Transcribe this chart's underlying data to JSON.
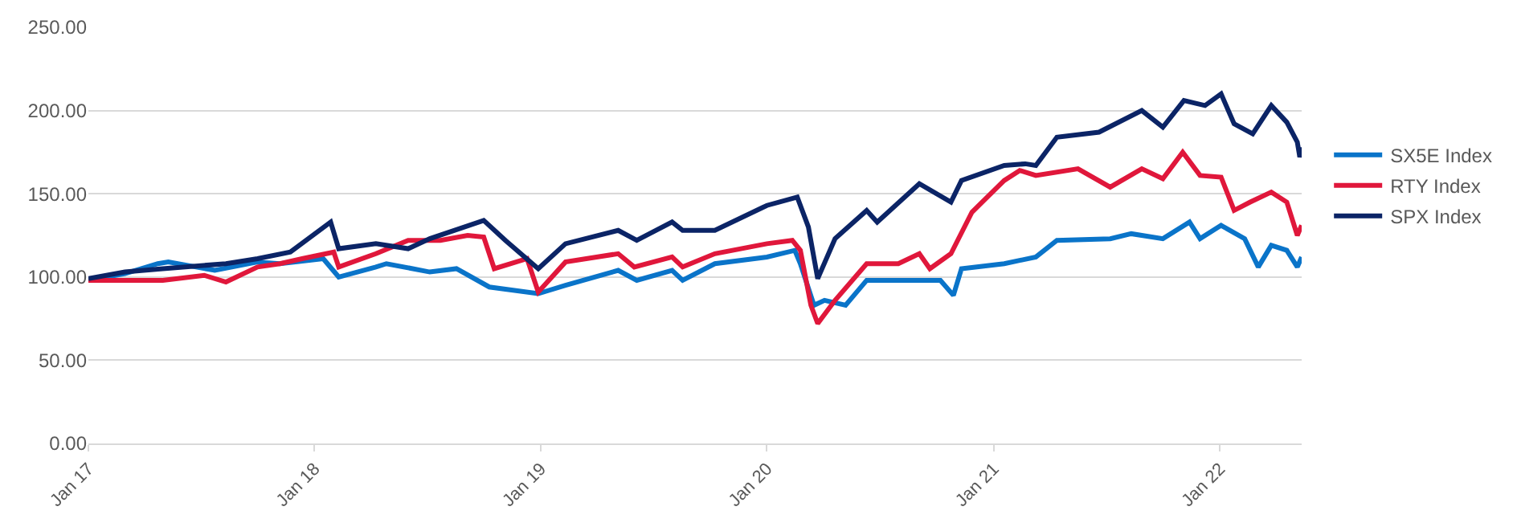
{
  "chart_data": {
    "type": "line",
    "grid": "y",
    "legend": "right",
    "line_style": "solid",
    "marker": "none",
    "xlim": [
      "2017-01-01",
      "2022-05-13"
    ],
    "xticks": [
      {
        "value": "2017-01-01",
        "label": "Jan 17"
      },
      {
        "value": "2018-01-01",
        "label": "Jan 18"
      },
      {
        "value": "2019-01-01",
        "label": "Jan 19"
      },
      {
        "value": "2020-01-01",
        "label": "Jan 20"
      },
      {
        "value": "2021-01-01",
        "label": "Jan 21"
      },
      {
        "value": "2022-01-01",
        "label": "Jan 22"
      }
    ],
    "ylim": [
      0,
      250
    ],
    "yticks": [
      {
        "value": 0,
        "label": "0.00"
      },
      {
        "value": 50,
        "label": "50.00"
      },
      {
        "value": 100,
        "label": "100.00"
      },
      {
        "value": 150,
        "label": "150.00"
      },
      {
        "value": 200,
        "label": "200.00"
      },
      {
        "value": 250,
        "label": "250.00"
      }
    ],
    "series": [
      {
        "name": "SX5E Index",
        "color": "#0a74c9",
        "x": [
          "2017-01-01",
          "2017-03-01",
          "2017-04-23",
          "2017-05-10",
          "2017-07-24",
          "2017-10-01",
          "2017-11-06",
          "2018-01-15",
          "2018-02-09",
          "2018-04-10",
          "2018-04-27",
          "2018-07-06",
          "2018-08-18",
          "2018-10-10",
          "2018-12-28",
          "2019-02-10",
          "2019-05-06",
          "2019-06-05",
          "2019-08-01",
          "2019-08-18",
          "2019-10-09",
          "2020-01-01",
          "2020-02-15",
          "2020-02-24",
          "2020-03-17",
          "2020-04-03",
          "2020-05-07",
          "2020-06-10",
          "2020-07-31",
          "2020-10-07",
          "2020-10-28",
          "2020-11-10",
          "2021-01-18",
          "2021-03-10",
          "2021-04-13",
          "2021-07-08",
          "2021-08-11",
          "2021-10-01",
          "2021-11-13",
          "2021-11-30",
          "2022-01-03",
          "2022-02-10",
          "2022-03-04",
          "2022-03-25",
          "2022-04-19",
          "2022-05-06",
          "2022-05-13"
        ],
        "values": [
          98,
          102,
          108,
          109,
          104,
          109,
          108,
          111,
          100,
          106,
          108,
          103,
          105,
          94,
          90,
          95,
          104,
          98,
          104,
          98,
          108,
          112,
          116,
          108,
          83,
          86,
          83,
          98,
          98,
          98,
          89,
          105,
          108,
          112,
          122,
          123,
          126,
          123,
          133,
          123,
          131,
          123,
          106,
          119,
          116,
          106,
          112
        ]
      },
      {
        "name": "RTY Index",
        "color": "#e0173b",
        "x": [
          "2017-01-01",
          "2017-03-01",
          "2017-05-01",
          "2017-07-07",
          "2017-08-11",
          "2017-10-01",
          "2017-11-06",
          "2017-12-12",
          "2018-02-01",
          "2018-02-09",
          "2018-04-10",
          "2018-06-01",
          "2018-07-23",
          "2018-09-05",
          "2018-10-01",
          "2018-10-18",
          "2018-12-10",
          "2018-12-28",
          "2019-02-10",
          "2019-05-06",
          "2019-06-01",
          "2019-08-01",
          "2019-08-18",
          "2019-10-09",
          "2020-01-01",
          "2020-02-11",
          "2020-02-24",
          "2020-03-12",
          "2020-03-23",
          "2020-04-20",
          "2020-06-10",
          "2020-07-31",
          "2020-09-03",
          "2020-09-20",
          "2020-10-24",
          "2020-11-27",
          "2021-01-18",
          "2021-02-12",
          "2021-03-10",
          "2021-05-17",
          "2021-07-08",
          "2021-08-28",
          "2021-10-01",
          "2021-11-02",
          "2021-11-30",
          "2022-01-03",
          "2022-01-24",
          "2022-02-19",
          "2022-03-25",
          "2022-04-19",
          "2022-05-06",
          "2022-05-13"
        ],
        "values": [
          98,
          98,
          98,
          101,
          97,
          106,
          108,
          111,
          115,
          106,
          114,
          122,
          122,
          125,
          124,
          105,
          111,
          91,
          109,
          114,
          106,
          112,
          106,
          114,
          120,
          122,
          116,
          83,
          72,
          86,
          108,
          108,
          114,
          105,
          114,
          139,
          158,
          164,
          161,
          165,
          154,
          165,
          159,
          175,
          161,
          160,
          140,
          145,
          151,
          145,
          125,
          131
        ]
      },
      {
        "name": "SPX Index",
        "color": "#0b2466",
        "x": [
          "2017-01-01",
          "2017-03-01",
          "2017-05-01",
          "2017-08-11",
          "2017-10-01",
          "2017-11-23",
          "2018-01-27",
          "2018-02-09",
          "2018-04-10",
          "2018-06-01",
          "2018-07-06",
          "2018-10-01",
          "2018-11-05",
          "2018-12-28",
          "2019-02-10",
          "2019-05-06",
          "2019-06-05",
          "2019-08-01",
          "2019-08-18",
          "2019-10-09",
          "2020-01-01",
          "2020-02-19",
          "2020-03-08",
          "2020-03-23",
          "2020-04-20",
          "2020-06-10",
          "2020-06-27",
          "2020-09-03",
          "2020-10-24",
          "2020-11-10",
          "2021-01-18",
          "2021-02-21",
          "2021-03-10",
          "2021-04-13",
          "2021-06-20",
          "2021-08-28",
          "2021-10-01",
          "2021-11-04",
          "2021-12-08",
          "2022-01-03",
          "2022-01-24",
          "2022-02-23",
          "2022-03-25",
          "2022-04-19",
          "2022-05-06",
          "2022-05-10",
          "2022-05-13"
        ],
        "values": [
          99,
          103,
          105,
          108,
          111,
          115,
          133,
          117,
          120,
          117,
          123,
          134,
          122,
          105,
          120,
          128,
          122,
          133,
          128,
          128,
          143,
          148,
          130,
          99,
          123,
          140,
          133,
          156,
          145,
          158,
          167,
          168,
          167,
          184,
          187,
          200,
          190,
          206,
          203,
          210,
          192,
          186,
          203,
          193,
          181,
          172,
          178
        ]
      }
    ]
  }
}
